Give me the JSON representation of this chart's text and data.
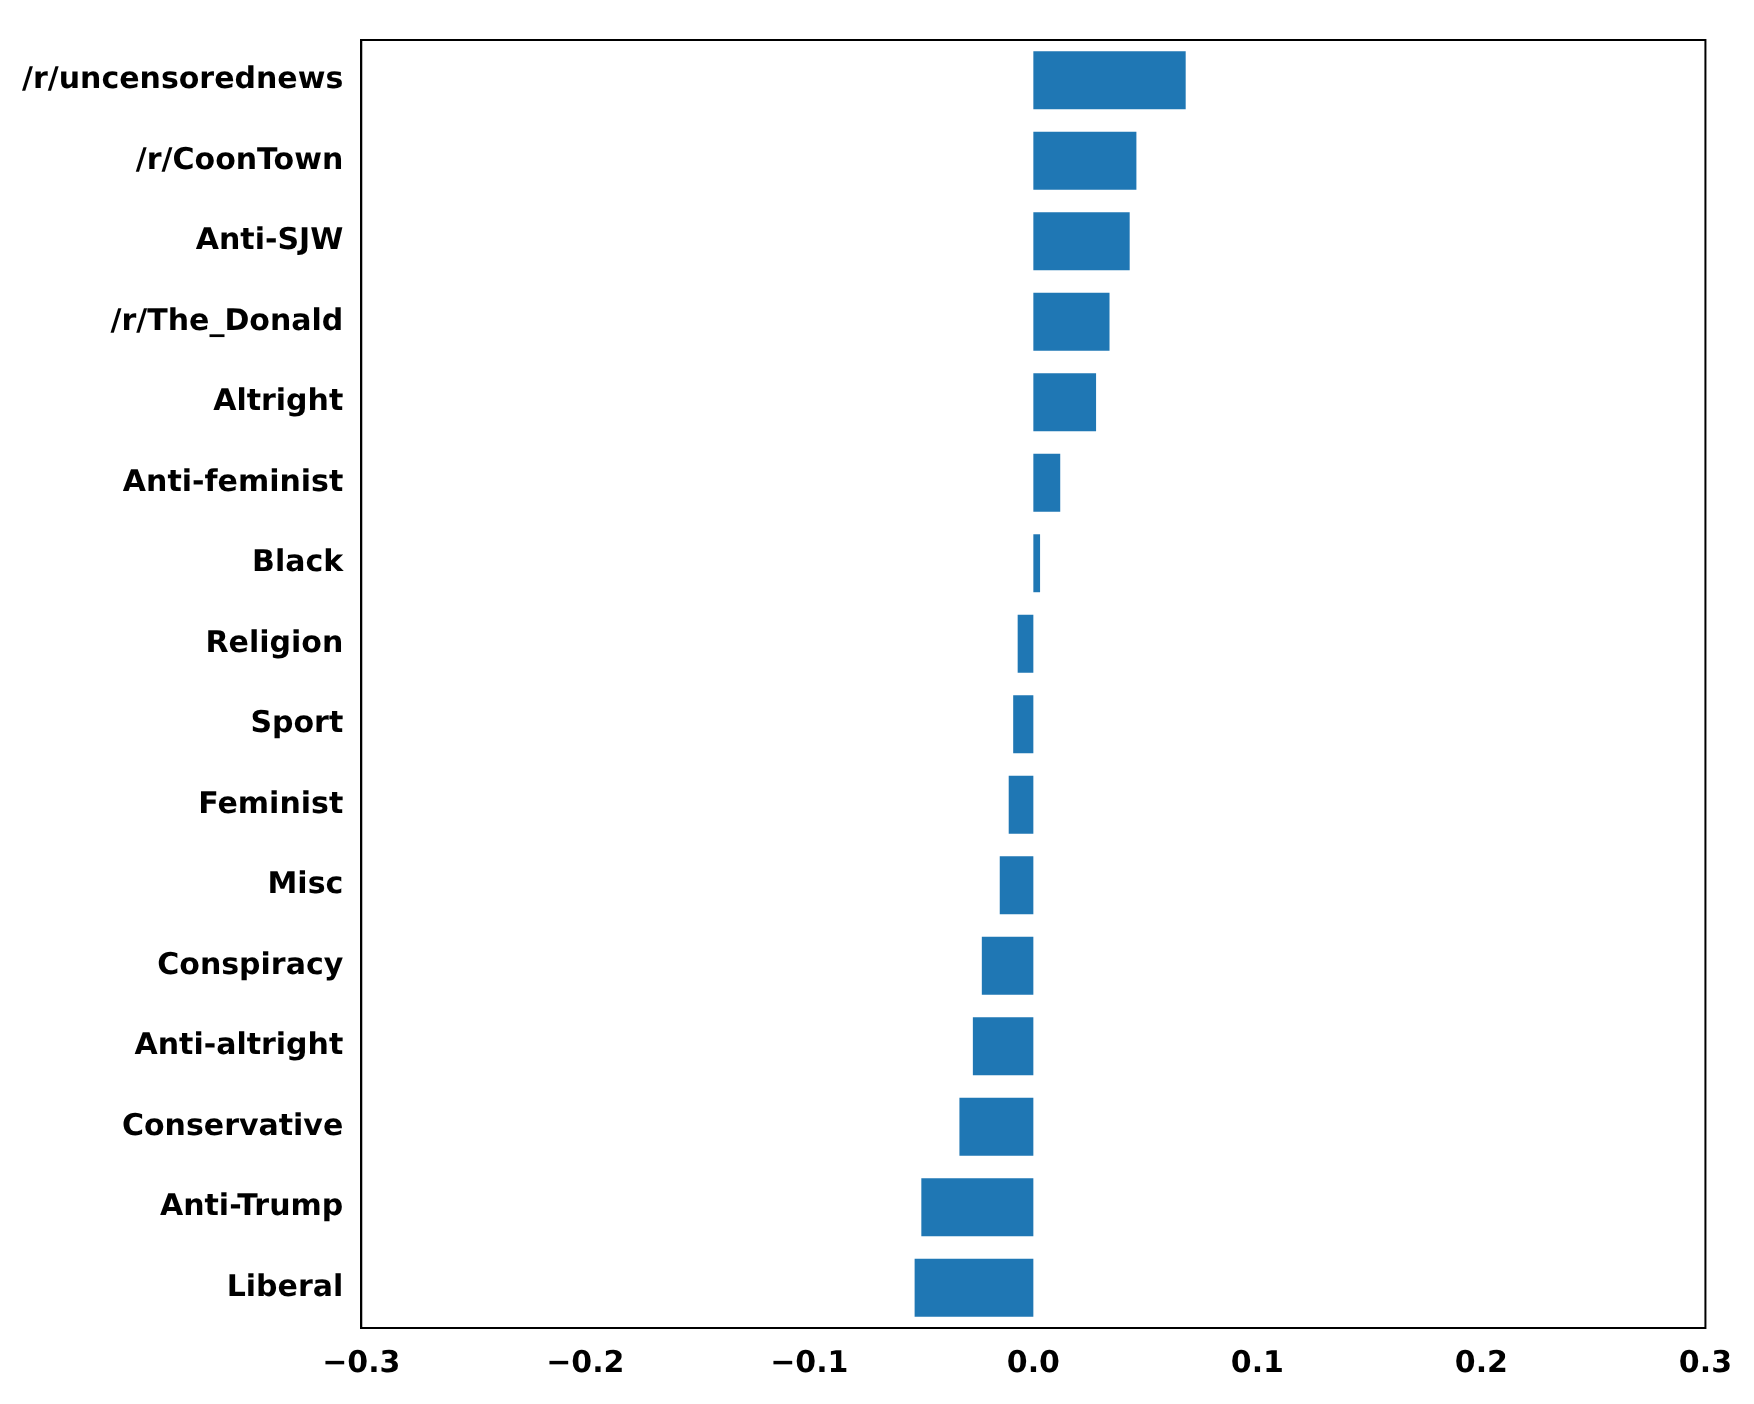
{
  "chart_data": {
    "type": "bar",
    "orientation": "horizontal",
    "categories": [
      "/r/uncensorednews",
      "/r/CoonTown",
      "Anti-SJW",
      "/r/The_Donald",
      "Altright",
      "Anti-feminist",
      "Black",
      "Religion",
      "Sport",
      "Feminist",
      "Misc",
      "Conspiracy",
      "Anti-altright",
      "Conservative",
      "Anti-Trump",
      "Liberal"
    ],
    "values": [
      0.068,
      0.046,
      0.043,
      0.034,
      0.028,
      0.012,
      0.003,
      -0.007,
      -0.009,
      -0.011,
      -0.015,
      -0.023,
      -0.027,
      -0.033,
      -0.05,
      -0.053
    ],
    "color": "#1f77b4",
    "xlim": [
      -0.3,
      0.3
    ],
    "xticks": [
      {
        "value": -0.3,
        "label": "−0.3"
      },
      {
        "value": -0.2,
        "label": "−0.2"
      },
      {
        "value": -0.1,
        "label": "−0.1"
      },
      {
        "value": 0,
        "label": "0.0"
      },
      {
        "value": 0.1,
        "label": "0.1"
      },
      {
        "value": 0.2,
        "label": "0.2"
      },
      {
        "value": 0.3,
        "label": "0.3"
      }
    ],
    "grid": false,
    "legend": false
  }
}
